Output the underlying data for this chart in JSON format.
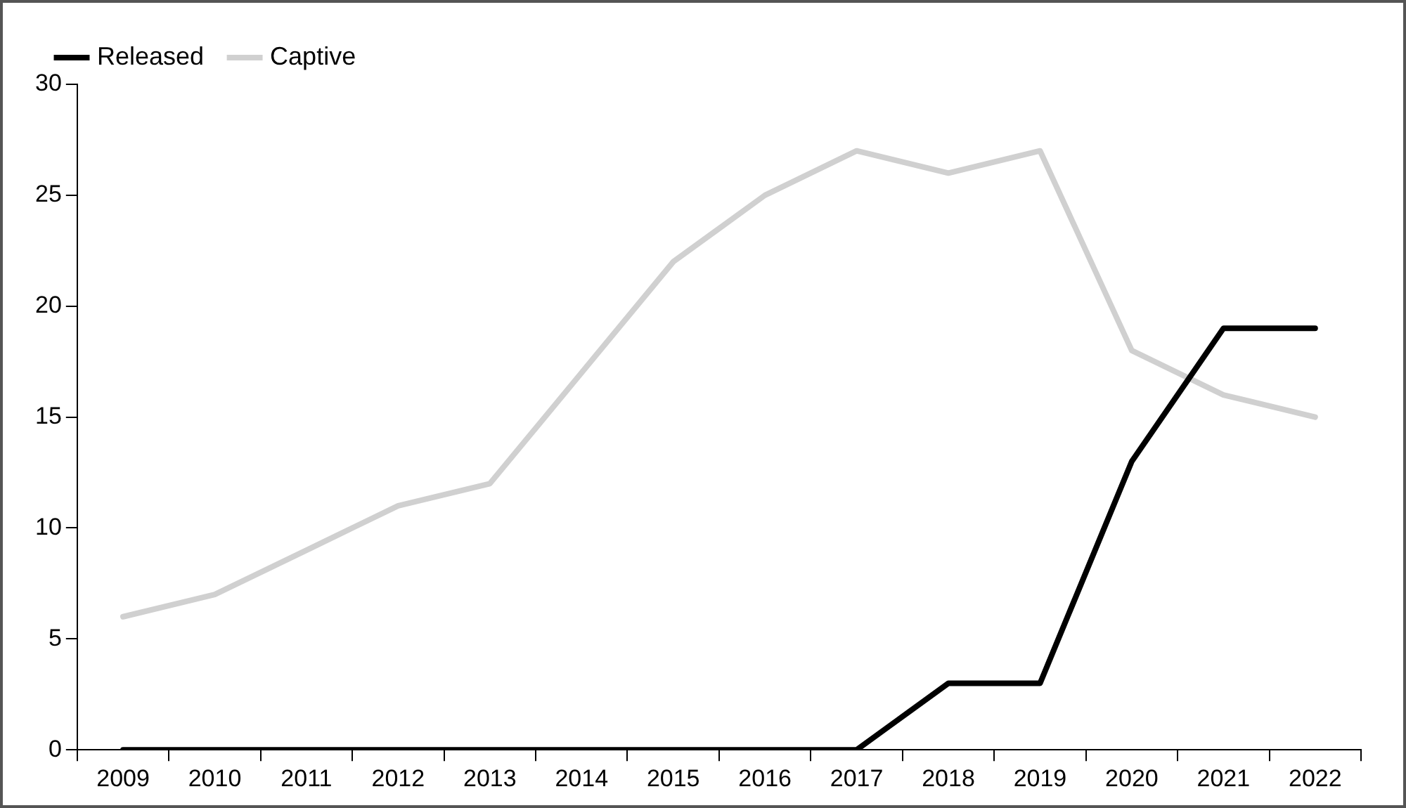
{
  "chart_data": {
    "type": "line",
    "categories": [
      "2009",
      "2010",
      "2011",
      "2012",
      "2013",
      "2014",
      "2015",
      "2016",
      "2017",
      "2018",
      "2019",
      "2020",
      "2021",
      "2022"
    ],
    "series": [
      {
        "name": "Released",
        "color": "#000000",
        "values": [
          0,
          0,
          0,
          0,
          0,
          0,
          0,
          0,
          0,
          3,
          3,
          13,
          19,
          19
        ]
      },
      {
        "name": "Captive",
        "color": "#d0d0d0",
        "values": [
          6,
          7,
          9,
          11,
          12,
          17,
          22,
          25,
          27,
          26,
          27,
          18,
          16,
          15
        ]
      }
    ],
    "ylim": [
      0,
      30
    ],
    "yticks": [
      0,
      5,
      10,
      15,
      20,
      25,
      30
    ],
    "grid": false,
    "legend": "top left",
    "marker": "none",
    "line_style": "solid"
  }
}
